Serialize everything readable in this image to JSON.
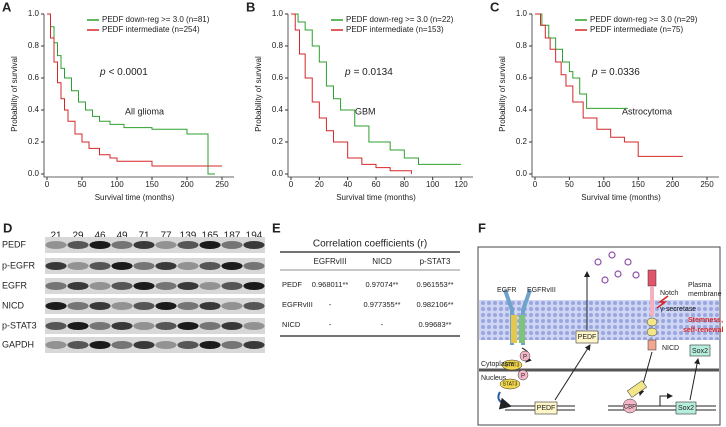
{
  "chart_data": [
    {
      "type": "line",
      "step": true,
      "panel": "A",
      "xlabel": "Survival time (months)",
      "ylabel": "Probability of survival",
      "annotation": {
        "p": "p",
        "value": "< 0.0001"
      },
      "subtitle": "All glioma",
      "xlim": [
        0,
        250
      ],
      "xticks": [
        0,
        50,
        100,
        150,
        200,
        250
      ],
      "ylim": [
        0,
        1
      ],
      "yticks": [
        {
          "value": 0,
          "label": "0.0"
        },
        0.2,
        0.4,
        0.6,
        0.8,
        {
          "value": 1,
          "label": "1.0"
        }
      ],
      "series": [
        {
          "name": "PEDF down-reg >= 3.0 (n=81)",
          "color": "#2ca02c",
          "x": [
            0,
            5,
            10,
            15,
            20,
            25,
            35,
            45,
            55,
            65,
            75,
            90,
            110,
            150,
            200,
            230,
            240
          ],
          "values": [
            1,
            0.92,
            0.82,
            0.74,
            0.66,
            0.6,
            0.52,
            0.45,
            0.4,
            0.36,
            0.33,
            0.31,
            0.29,
            0.28,
            0.25,
            0,
            0
          ]
        },
        {
          "name": "PEDF intermediate (n=254)",
          "color": "#d62728",
          "x": [
            0,
            5,
            10,
            15,
            20,
            25,
            30,
            40,
            50,
            60,
            75,
            90,
            100,
            125,
            150,
            200,
            250
          ],
          "values": [
            1,
            0.85,
            0.7,
            0.57,
            0.47,
            0.4,
            0.33,
            0.25,
            0.2,
            0.16,
            0.12,
            0.1,
            0.08,
            0.08,
            0.05,
            0.05,
            0.05
          ]
        }
      ]
    },
    {
      "type": "line",
      "step": true,
      "panel": "B",
      "xlabel": "Survival time (months)",
      "ylabel": "Probability of survival",
      "annotation": {
        "p": "p",
        "value": "= 0.0134"
      },
      "subtitle": "GBM",
      "xlim": [
        0,
        120
      ],
      "xticks": [
        0,
        20,
        40,
        60,
        80,
        100,
        120
      ],
      "ylim": [
        0,
        1
      ],
      "yticks": [
        {
          "value": 0,
          "label": "0.0"
        },
        0.2,
        0.4,
        0.6,
        0.8,
        {
          "value": 1,
          "label": "1.0"
        }
      ],
      "series": [
        {
          "name": "PEDF down-reg >= 3.0 (n=22)",
          "color": "#2ca02c",
          "x": [
            0,
            5,
            10,
            15,
            20,
            25,
            30,
            35,
            45,
            55,
            70,
            80,
            90,
            120
          ],
          "values": [
            1,
            0.95,
            0.9,
            0.8,
            0.7,
            0.55,
            0.47,
            0.4,
            0.3,
            0.2,
            0.15,
            0.1,
            0.06,
            0.06
          ]
        },
        {
          "name": "PEDF intermediate (n=153)",
          "color": "#d62728",
          "x": [
            0,
            3,
            6,
            10,
            15,
            20,
            25,
            30,
            40,
            50,
            60,
            70,
            85
          ],
          "values": [
            1,
            0.9,
            0.75,
            0.6,
            0.45,
            0.35,
            0.27,
            0.2,
            0.1,
            0.06,
            0.04,
            0.02,
            0
          ]
        }
      ]
    },
    {
      "type": "line",
      "step": true,
      "panel": "C",
      "xlabel": "Survival time (months)",
      "ylabel": "Probability of survival",
      "annotation": {
        "p": "p",
        "value": "= 0.0336"
      },
      "subtitle": "Astrocytoma",
      "xlim": [
        0,
        250
      ],
      "xticks": [
        0,
        50,
        100,
        150,
        200,
        250
      ],
      "ylim": [
        0,
        1
      ],
      "yticks": [
        {
          "value": 0,
          "label": "0.0"
        },
        0.2,
        0.4,
        0.6,
        0.8,
        {
          "value": 1,
          "label": "1.0"
        }
      ],
      "series": [
        {
          "name": "PEDF down-reg >= 3.0 (n=29)",
          "color": "#2ca02c",
          "x": [
            0,
            10,
            20,
            30,
            40,
            50,
            55,
            65,
            75,
            135
          ],
          "values": [
            1,
            0.93,
            0.85,
            0.78,
            0.7,
            0.64,
            0.6,
            0.5,
            0.41,
            0.41
          ]
        },
        {
          "name": "PEDF intermediate (n=75)",
          "color": "#d62728",
          "x": [
            0,
            8,
            15,
            22,
            30,
            38,
            45,
            55,
            70,
            90,
            110,
            130,
            150,
            215
          ],
          "values": [
            1,
            0.93,
            0.85,
            0.78,
            0.7,
            0.62,
            0.55,
            0.45,
            0.35,
            0.28,
            0.23,
            0.2,
            0.11,
            0.11
          ]
        }
      ]
    }
  ],
  "western_blot": {
    "panel": "D",
    "lanes": [
      "21",
      "29",
      "46",
      "49",
      "71",
      "77",
      "139",
      "165",
      "187",
      "194"
    ],
    "rows": [
      "PEDF",
      "p-EGFR",
      "EGFR",
      "NICD",
      "p-STAT3",
      "GAPDH"
    ]
  },
  "table": {
    "panel": "E",
    "title": "Correlation coefficients (r)",
    "columns": [
      "EGFRvIII",
      "NICD",
      "p-STAT3"
    ],
    "rows": [
      [
        "PEDF",
        "0.968011**",
        "0.97074**",
        "0.961553**"
      ],
      [
        "EGFRvIII",
        "-",
        "0.977355**",
        "0.982106**"
      ],
      [
        "NICD",
        "-",
        "-",
        "0.99683**"
      ]
    ]
  },
  "diagram": {
    "panel": "F",
    "labels": {
      "egfr": "EGFR",
      "egfrviii": "EGFRvIII",
      "p1": "P",
      "stat3a": "STAT3",
      "plasma": "Plasma",
      "membrane": "membrane",
      "notch": "Notch",
      "gsec": "γ-secretase",
      "pedf_protein": "PEDF",
      "nicd": "NICD",
      "stem1": "Stemness,",
      "stem2": "self-renewal",
      "sox2_protein": "Sox2",
      "cytoplasm": "Cytoplasm",
      "nucleus": "Nucleus",
      "stat3b": "STAT3",
      "p2": "P",
      "pedf_gene": "PEDF",
      "cbp": "CBP",
      "sox2_gene": "Sox2"
    }
  }
}
